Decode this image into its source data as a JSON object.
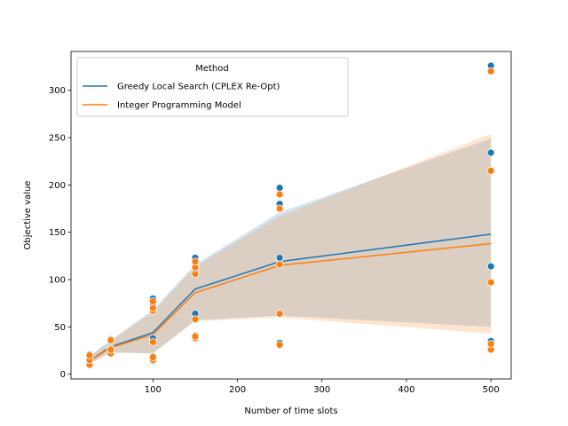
{
  "chart_data": {
    "type": "line",
    "xlabel": "Number of time slots",
    "ylabel": "Objective value",
    "xlim": [
      3,
      524
    ],
    "ylim": [
      -5,
      341
    ],
    "xticks": [
      100,
      200,
      300,
      400,
      500
    ],
    "yticks": [
      0,
      50,
      100,
      150,
      200,
      250,
      300
    ],
    "grid": false,
    "legend": {
      "title": "Method",
      "placement": "top-left",
      "entries": [
        "Greedy Local Search (CPLEX Re-Opt)",
        "Integer Programming Model"
      ]
    },
    "series": [
      {
        "name": "Greedy Local Search (CPLEX Re-Opt)",
        "color": "#1f77b4",
        "mean_line": {
          "x": [
            25,
            50,
            100,
            150,
            250,
            500
          ],
          "y": [
            14,
            29,
            44,
            90,
            119,
            148
          ]
        },
        "ci_band": {
          "x": [
            25,
            50,
            100,
            150,
            250,
            500
          ],
          "lower": [
            11,
            23,
            22,
            57,
            62,
            50
          ],
          "upper": [
            19,
            36,
            68,
            116,
            171,
            249
          ]
        },
        "points": [
          [
            25,
            11
          ],
          [
            25,
            16
          ],
          [
            25,
            21
          ],
          [
            50,
            22
          ],
          [
            50,
            27
          ],
          [
            50,
            37
          ],
          [
            100,
            14
          ],
          [
            100,
            19
          ],
          [
            100,
            38
          ],
          [
            100,
            68
          ],
          [
            100,
            73
          ],
          [
            100,
            80
          ],
          [
            150,
            39
          ],
          [
            150,
            41
          ],
          [
            150,
            64
          ],
          [
            150,
            108
          ],
          [
            150,
            114
          ],
          [
            150,
            121
          ],
          [
            150,
            123
          ],
          [
            250,
            33
          ],
          [
            250,
            64
          ],
          [
            250,
            122
          ],
          [
            250,
            123
          ],
          [
            250,
            180
          ],
          [
            250,
            197
          ],
          [
            500,
            27
          ],
          [
            500,
            35
          ],
          [
            500,
            114
          ],
          [
            500,
            234
          ],
          [
            500,
            326
          ]
        ]
      },
      {
        "name": "Integer Programming Model",
        "color": "#ff7f0e",
        "mean_line": {
          "x": [
            25,
            50,
            100,
            150,
            250,
            500
          ],
          "y": [
            14,
            28,
            42,
            86,
            115,
            138
          ]
        },
        "ci_band": {
          "x": [
            25,
            50,
            100,
            150,
            250,
            500
          ],
          "lower": [
            11,
            23,
            22,
            56,
            60,
            43
          ],
          "upper": [
            19,
            35,
            66,
            114,
            167,
            254
          ]
        },
        "points": [
          [
            25,
            10
          ],
          [
            25,
            15
          ],
          [
            25,
            20
          ],
          [
            50,
            22
          ],
          [
            50,
            26
          ],
          [
            50,
            36
          ],
          [
            100,
            15
          ],
          [
            100,
            18
          ],
          [
            100,
            34
          ],
          [
            100,
            67
          ],
          [
            100,
            70
          ],
          [
            100,
            77
          ],
          [
            150,
            38
          ],
          [
            150,
            40
          ],
          [
            150,
            58
          ],
          [
            150,
            106
          ],
          [
            150,
            113
          ],
          [
            150,
            119
          ],
          [
            250,
            31
          ],
          [
            250,
            64
          ],
          [
            250,
            116
          ],
          [
            250,
            175
          ],
          [
            250,
            190
          ],
          [
            500,
            26
          ],
          [
            500,
            32
          ],
          [
            500,
            97
          ],
          [
            500,
            215
          ],
          [
            500,
            320
          ]
        ]
      }
    ]
  }
}
